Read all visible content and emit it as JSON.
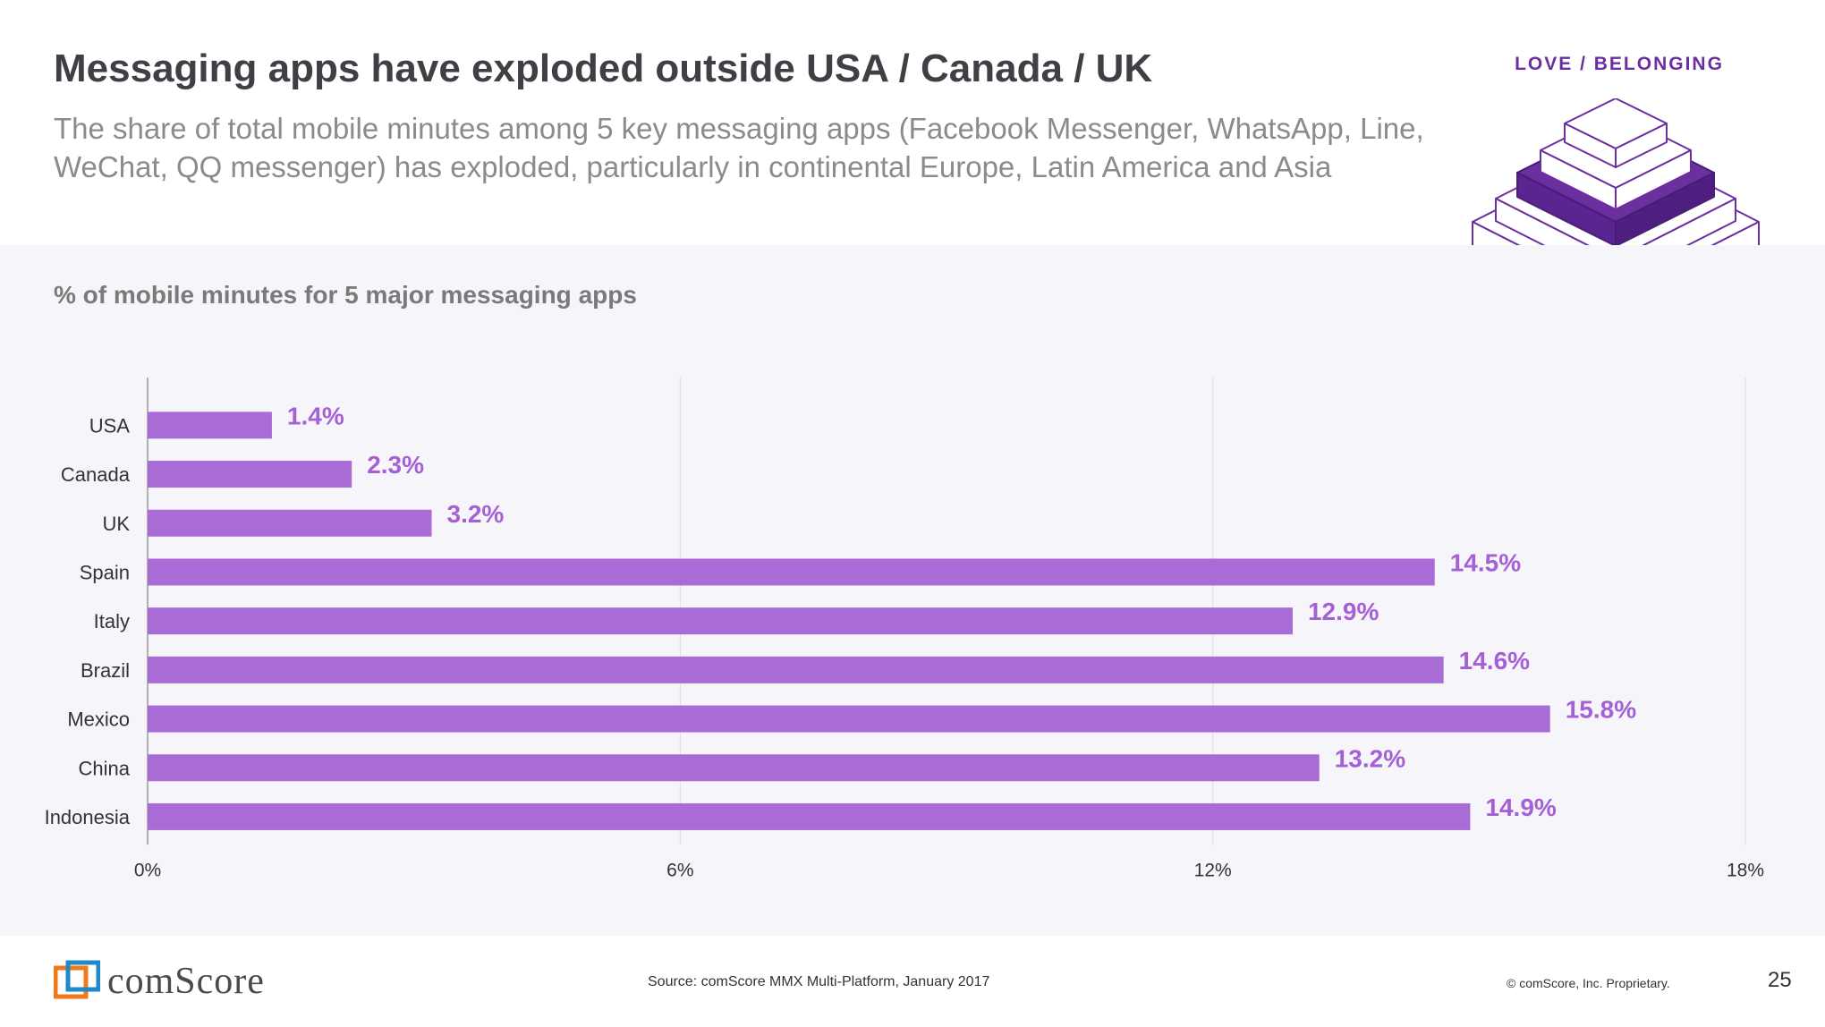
{
  "header": {
    "title": "Messaging apps have exploded outside USA / Canada / UK",
    "subtitle": "The share of total mobile minutes among 5 key messaging apps (Facebook Messenger, WhatsApp, Line, WeChat, QQ messenger) has exploded, particularly in continental Europe, Latin America and Asia",
    "badge": "LOVE / BELONGING"
  },
  "colors": {
    "bar": "#a96bd6",
    "label": "#a560d8",
    "badge": "#6b2fa0",
    "pyramid_fill": "#6b2fa0"
  },
  "chart_data": {
    "type": "bar",
    "orientation": "horizontal",
    "title": "% of mobile minutes for 5 major messaging apps",
    "categories": [
      "USA",
      "Canada",
      "UK",
      "Spain",
      "Italy",
      "Brazil",
      "Mexico",
      "China",
      "Indonesia"
    ],
    "values": [
      1.4,
      2.3,
      3.2,
      14.5,
      12.9,
      14.6,
      15.8,
      13.2,
      14.9
    ],
    "value_labels": [
      "1.4%",
      "2.3%",
      "3.2%",
      "14.5%",
      "12.9%",
      "14.6%",
      "15.8%",
      "13.2%",
      "14.9%"
    ],
    "xlim": [
      0,
      18
    ],
    "xticks": [
      0,
      6,
      12,
      18
    ],
    "xtick_labels": [
      "0%",
      "6%",
      "12%",
      "18%"
    ],
    "grid": true,
    "legend": "none"
  },
  "footer": {
    "logo_text": "comScore",
    "source": "Source: comScore MMX Multi-Platform, January 2017",
    "copyright": "© comScore, Inc. Proprietary.",
    "page_number": "25"
  }
}
